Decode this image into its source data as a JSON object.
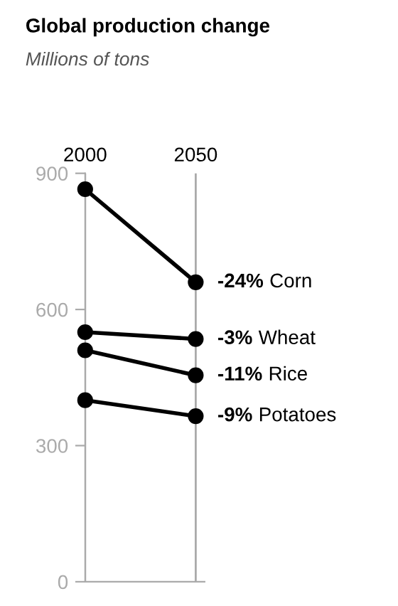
{
  "chart_data": {
    "type": "line",
    "title": "Global production change",
    "subtitle": "Millions of tons",
    "x": [
      2000,
      2050
    ],
    "xlim": [
      2000,
      2054
    ],
    "xticks": [
      2000,
      2050
    ],
    "ylim": [
      0,
      900
    ],
    "yticks": [
      0,
      300,
      600,
      900
    ],
    "grid": "x",
    "marker": "circle",
    "line_style": "solid",
    "legend": false,
    "series": [
      {
        "name": "Corn",
        "color": "#000000",
        "values": [
          865,
          660
        ]
      },
      {
        "name": "Wheat",
        "color": "#000000",
        "values": [
          550,
          535
        ]
      },
      {
        "name": "Rice",
        "color": "#000000",
        "values": [
          510,
          455
        ]
      },
      {
        "name": "Potatoes",
        "color": "#000000",
        "values": [
          400,
          365
        ]
      }
    ],
    "annotations": [
      "-24%",
      "-3%",
      "-11%",
      "-9%"
    ]
  }
}
